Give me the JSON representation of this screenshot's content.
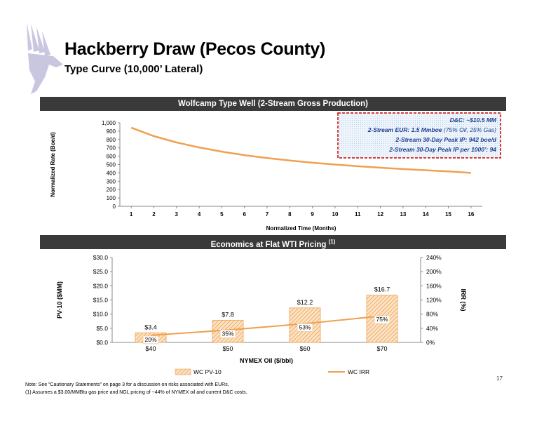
{
  "header": {
    "title": "Hackberry Draw (Pecos County)",
    "subtitle": "Type Curve (10,000’ Lateral)"
  },
  "colors": {
    "accent": "#f0a050",
    "band": "#3a3a3a",
    "box_border": "#cc0000",
    "box_text": "#1f3f8f"
  },
  "chart_data": [
    {
      "type": "line",
      "title": "Wolfcamp Type Well (2-Stream Gross Production)",
      "xlabel": "Normalized Time (Months)",
      "ylabel": "Normalized Rate (Boe/d)",
      "x_ticks": [
        "1",
        "2",
        "3",
        "4",
        "5",
        "6",
        "7",
        "8",
        "9",
        "10",
        "11",
        "12",
        "13",
        "14",
        "15",
        "16"
      ],
      "y_ticks": [
        "0",
        "100",
        "200",
        "300",
        "400",
        "500",
        "600",
        "700",
        "800",
        "900",
        "1,000"
      ],
      "ylim": [
        0,
        1000
      ],
      "xlim": [
        0.5,
        16.5
      ],
      "grid": false,
      "series": [
        {
          "x": [
            1,
            2,
            3,
            4,
            5,
            6,
            7,
            8,
            9,
            10,
            11,
            12,
            13,
            14,
            15,
            16
          ],
          "values": [
            942,
            840,
            765,
            705,
            655,
            613,
            578,
            548,
            522,
            500,
            480,
            462,
            446,
            432,
            418,
            400
          ]
        }
      ],
      "annotation": {
        "lines": [
          {
            "b": "D&C: ~$10.5 MM",
            "r": ""
          },
          {
            "b": "2-Stream EUR:  1.5 Mmboe",
            "r": " (75% Oil, 25% Gas)"
          },
          {
            "b": "2-Stream 30-Day Peak IP: 942 boe/d",
            "r": ""
          },
          {
            "b": "2-Stream 30-Day Peak IP per 1000’: 94",
            "r": ""
          }
        ]
      }
    },
    {
      "type": "bar",
      "title": "Economics at Flat WTI Pricing",
      "title_sup": "(1)",
      "categories": [
        "$40",
        "$50",
        "$60",
        "$70"
      ],
      "xlabel": "NYMEX Oil ($/bbl)",
      "ylabel": "PV-10 ($MM)",
      "y2label": "IRR (%)",
      "ylim": [
        0,
        30
      ],
      "y2lim": [
        0,
        240
      ],
      "y_ticks": [
        "$0.0",
        "$5.0",
        "$10.0",
        "$15.0",
        "$20.0",
        "$25.0",
        "$30.0"
      ],
      "y2_ticks": [
        "0%",
        "40%",
        "80%",
        "120%",
        "160%",
        "200%",
        "240%"
      ],
      "series": [
        {
          "name": "WC  PV-10",
          "type": "bar",
          "values": [
            3.4,
            7.8,
            12.2,
            16.7
          ],
          "labels": [
            "$3.4",
            "$7.8",
            "$12.2",
            "$16.7"
          ]
        },
        {
          "name": "WC IRR",
          "type": "line",
          "axis": "y2",
          "values": [
            20,
            35,
            53,
            75
          ],
          "labels": [
            "20%",
            "35%",
            "53%",
            "75%"
          ]
        }
      ]
    }
  ],
  "footer": {
    "note1": "Note: See “Cautionary Statements” on page 3 for a discussion on risks associated with EURs.",
    "note2": "(1)      Assumes a $3.00/MMBtu gas price and NGL pricing of ~44% of NYMEX oil and current D&C costs.",
    "page_number": "17"
  }
}
